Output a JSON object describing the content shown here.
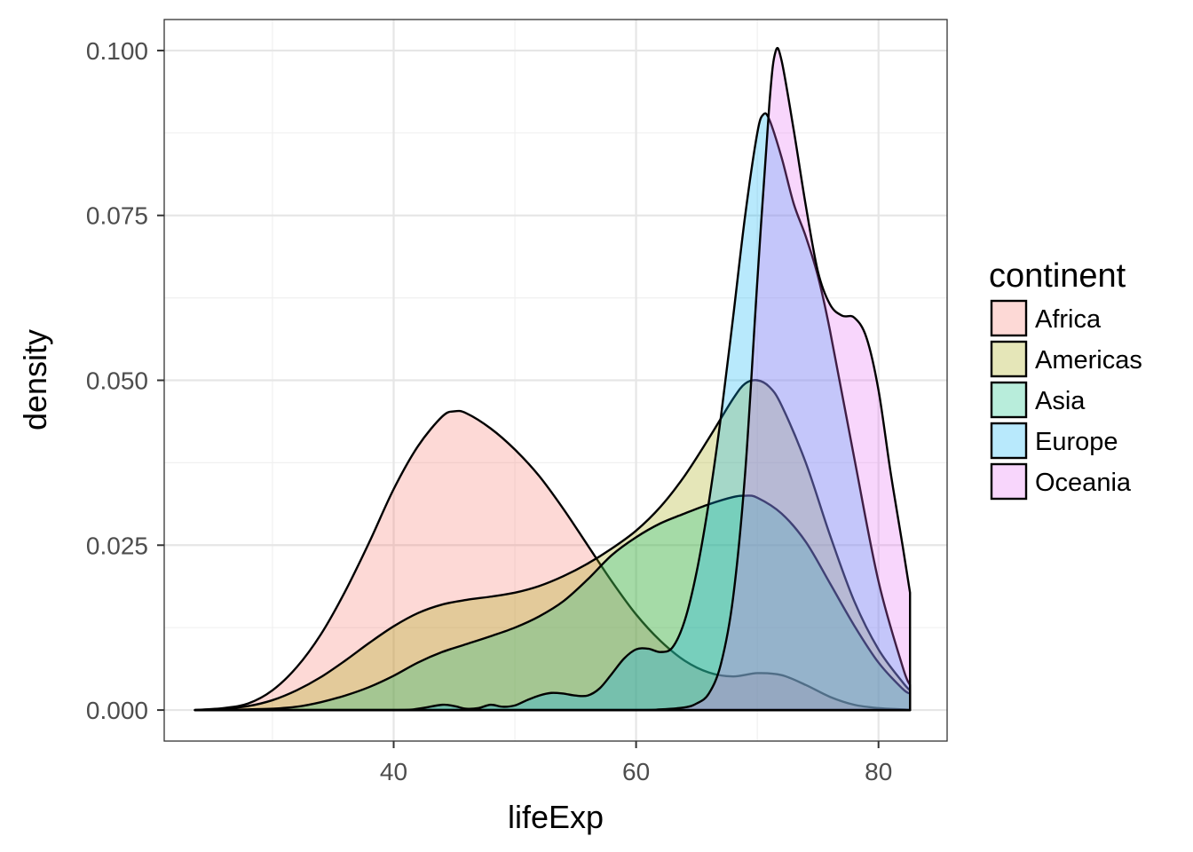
{
  "chart_data": {
    "type": "area",
    "title": "",
    "xlabel": "lifeExp",
    "ylabel": "density",
    "xlim": [
      21.07,
      85.66
    ],
    "ylim": [
      -0.0047,
      0.1047
    ],
    "xticks": [
      40,
      60,
      80
    ],
    "xtick_labels": [
      "40",
      "60",
      "80"
    ],
    "yticks": [
      0,
      0.025,
      0.05,
      0.075,
      0.1
    ],
    "ytick_labels": [
      "0.000",
      "0.025",
      "0.050",
      "0.075",
      "0.100"
    ],
    "grid": true,
    "legend": {
      "title": "continent",
      "position": "right"
    },
    "series": [
      {
        "name": "Africa",
        "color": "#F8766D",
        "x": [
          23.6,
          26,
          28,
          30,
          32,
          34,
          36,
          38,
          40,
          42,
          44,
          45,
          46,
          48,
          50,
          52,
          54,
          56,
          58,
          60,
          62,
          64,
          66,
          68,
          70,
          72,
          74,
          76,
          78,
          80,
          82,
          82.6
        ],
        "y": [
          0.0,
          0.0003,
          0.001,
          0.003,
          0.0065,
          0.0115,
          0.018,
          0.0255,
          0.0335,
          0.04,
          0.0445,
          0.0453,
          0.045,
          0.0427,
          0.0395,
          0.0355,
          0.0305,
          0.025,
          0.0195,
          0.0145,
          0.0105,
          0.0075,
          0.0057,
          0.0051,
          0.0056,
          0.0053,
          0.0038,
          0.002,
          0.0008,
          0.0003,
          0.0001,
          0.0
        ]
      },
      {
        "name": "Americas",
        "color": "#A3A500",
        "x": [
          23.6,
          26,
          28,
          30,
          32,
          34,
          36,
          38,
          40,
          42,
          44,
          46,
          48,
          50,
          52,
          54,
          56,
          58,
          60,
          62,
          64,
          66,
          68,
          69,
          70,
          71,
          72,
          74,
          76,
          78,
          80,
          82,
          82.6
        ],
        "y": [
          0.0,
          0.0002,
          0.0006,
          0.0015,
          0.003,
          0.005,
          0.0075,
          0.0102,
          0.0127,
          0.0147,
          0.016,
          0.0167,
          0.0172,
          0.0178,
          0.0188,
          0.0203,
          0.0222,
          0.0245,
          0.0272,
          0.0308,
          0.0355,
          0.0412,
          0.0472,
          0.0495,
          0.05,
          0.049,
          0.0462,
          0.0375,
          0.0265,
          0.0165,
          0.0092,
          0.0042,
          0.003
        ]
      },
      {
        "name": "Asia",
        "color": "#00BF7D",
        "x": [
          23.6,
          26,
          28,
          30,
          32,
          34,
          36,
          38,
          40,
          42,
          44,
          46,
          48,
          50,
          52,
          54,
          56,
          58,
          60,
          62,
          64,
          66,
          68,
          69,
          70,
          72,
          74,
          76,
          78,
          80,
          82,
          82.6
        ],
        "y": [
          0.0,
          0.0,
          0.0001,
          0.0002,
          0.0005,
          0.0012,
          0.0022,
          0.0035,
          0.0052,
          0.0072,
          0.0088,
          0.01,
          0.0112,
          0.0125,
          0.0142,
          0.0165,
          0.0198,
          0.0235,
          0.0262,
          0.0283,
          0.0298,
          0.0312,
          0.0323,
          0.0325,
          0.0322,
          0.0298,
          0.0255,
          0.0192,
          0.0128,
          0.0072,
          0.0032,
          0.0025
        ]
      },
      {
        "name": "Europe",
        "color": "#00B0F6",
        "x": [
          23.6,
          40,
          42,
          44,
          45,
          46,
          47,
          48,
          49,
          50,
          51,
          52,
          53,
          54,
          55,
          56,
          57,
          58,
          59,
          60,
          61,
          62,
          63,
          64,
          65,
          66,
          67,
          68,
          69,
          70,
          70.5,
          71,
          72,
          73,
          74,
          75,
          76,
          78,
          80,
          82,
          82.6
        ],
        "y": [
          0.0,
          0.0,
          0.0002,
          0.0008,
          0.0006,
          0.0002,
          0.0003,
          0.0008,
          0.0005,
          0.0007,
          0.0015,
          0.0022,
          0.0026,
          0.0025,
          0.0022,
          0.0022,
          0.0033,
          0.0055,
          0.0078,
          0.0092,
          0.0093,
          0.0088,
          0.0095,
          0.0135,
          0.021,
          0.0315,
          0.0445,
          0.0595,
          0.075,
          0.0875,
          0.0903,
          0.0895,
          0.0838,
          0.0768,
          0.0718,
          0.0658,
          0.0575,
          0.0382,
          0.0195,
          0.0065,
          0.0038
        ]
      },
      {
        "name": "Oceania",
        "color": "#E76BF3",
        "x": [
          23.6,
          60,
          62,
          64,
          65,
          66,
          67,
          68,
          69,
          70,
          71,
          71.5,
          72,
          73,
          74,
          75,
          76,
          77,
          78,
          79,
          80,
          81,
          82,
          82.6
        ],
        "y": [
          0.0,
          0.0,
          0.0001,
          0.0004,
          0.001,
          0.0025,
          0.007,
          0.017,
          0.036,
          0.065,
          0.092,
          0.0998,
          0.0985,
          0.088,
          0.0765,
          0.0665,
          0.0615,
          0.0598,
          0.0595,
          0.0565,
          0.0485,
          0.036,
          0.0248,
          0.0178
        ]
      }
    ]
  }
}
